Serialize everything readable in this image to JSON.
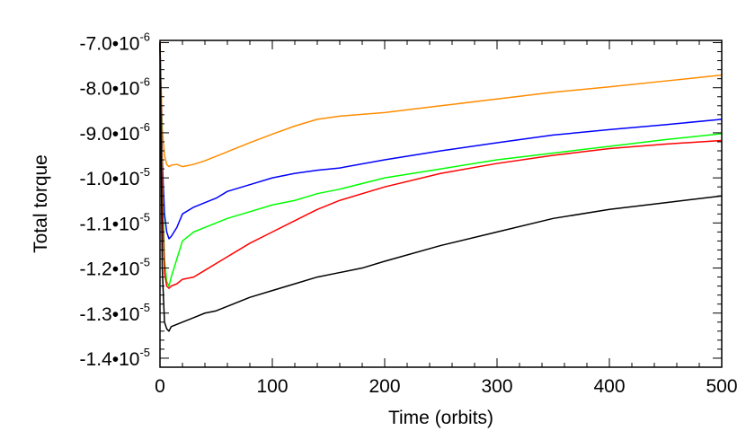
{
  "chart_data": {
    "type": "line",
    "title": "",
    "xlabel": "Time (orbits)",
    "ylabel": "Total torque",
    "xlim": [
      0,
      500
    ],
    "ylim": [
      -1.42e-05,
      -6.95e-06
    ],
    "grid": false,
    "legend": "none",
    "x_ticks": [
      {
        "value": 0,
        "label": "0"
      },
      {
        "value": 100,
        "label": "100"
      },
      {
        "value": 200,
        "label": "200"
      },
      {
        "value": 300,
        "label": "300"
      },
      {
        "value": 400,
        "label": "400"
      },
      {
        "value": 500,
        "label": "500"
      }
    ],
    "y_ticks": [
      {
        "value": -7e-06,
        "mantissa": "-7.0•10",
        "exponent": "-6"
      },
      {
        "value": -8e-06,
        "mantissa": "-8.0•10",
        "exponent": "-6"
      },
      {
        "value": -9e-06,
        "mantissa": "-9.0•10",
        "exponent": "-6"
      },
      {
        "value": -1e-05,
        "mantissa": "-1.0•10",
        "exponent": "-5"
      },
      {
        "value": -1.1e-05,
        "mantissa": "-1.1•10",
        "exponent": "-5"
      },
      {
        "value": -1.2e-05,
        "mantissa": "-1.2•10",
        "exponent": "-5"
      },
      {
        "value": -1.3e-05,
        "mantissa": "-1.3•10",
        "exponent": "-5"
      },
      {
        "value": -1.4e-05,
        "mantissa": "-1.4•10",
        "exponent": "-5"
      }
    ],
    "series": [
      {
        "color": "#ff8c00",
        "x": [
          0,
          2,
          4,
          6,
          8,
          10,
          15,
          20,
          30,
          40,
          50,
          60,
          80,
          100,
          120,
          140,
          160,
          200,
          250,
          300,
          350,
          400,
          450,
          500
        ],
        "y": [
          -7e-06,
          -8.9e-06,
          -9.5e-06,
          -9.7e-06,
          -9.75e-06,
          -9.72e-06,
          -9.7e-06,
          -9.75e-06,
          -9.7e-06,
          -9.62e-06,
          -9.52e-06,
          -9.42e-06,
          -9.22e-06,
          -9.03e-06,
          -8.85e-06,
          -8.7e-06,
          -8.63e-06,
          -8.55e-06,
          -8.4e-06,
          -8.25e-06,
          -8.1e-06,
          -7.98e-06,
          -7.85e-06,
          -7.72e-06
        ]
      },
      {
        "color": "#0000ff",
        "x": [
          0,
          2,
          4,
          6,
          8,
          10,
          15,
          20,
          30,
          40,
          50,
          60,
          80,
          100,
          120,
          140,
          160,
          200,
          250,
          300,
          350,
          400,
          450,
          500
        ],
        "y": [
          -7e-06,
          -9.6e-06,
          -1.08e-05,
          -1.12e-05,
          -1.135e-05,
          -1.13e-05,
          -1.11e-05,
          -1.08e-05,
          -1.065e-05,
          -1.055e-05,
          -1.045e-05,
          -1.03e-05,
          -1.015e-05,
          -1e-05,
          -9.9e-06,
          -9.83e-06,
          -9.78e-06,
          -9.6e-06,
          -9.4e-06,
          -9.22e-06,
          -9.05e-06,
          -8.93e-06,
          -8.82e-06,
          -8.7e-06
        ]
      },
      {
        "color": "#00ff00",
        "x": [
          0,
          2,
          4,
          6,
          8,
          10,
          15,
          20,
          30,
          40,
          50,
          60,
          80,
          100,
          120,
          140,
          160,
          200,
          250,
          300,
          350,
          400,
          450,
          500
        ],
        "y": [
          -7e-06,
          -1e-05,
          -1.18e-05,
          -1.23e-05,
          -1.24e-05,
          -1.22e-05,
          -1.18e-05,
          -1.14e-05,
          -1.12e-05,
          -1.11e-05,
          -1.1e-05,
          -1.09e-05,
          -1.075e-05,
          -1.06e-05,
          -1.05e-05,
          -1.035e-05,
          -1.025e-05,
          -1e-05,
          -9.8e-06,
          -9.6e-06,
          -9.45e-06,
          -9.3e-06,
          -9.15e-06,
          -9.02e-06
        ]
      },
      {
        "color": "#ff0000",
        "x": [
          0,
          2,
          4,
          6,
          8,
          10,
          15,
          20,
          30,
          40,
          50,
          60,
          80,
          100,
          120,
          140,
          160,
          200,
          250,
          300,
          350,
          400,
          450,
          500
        ],
        "y": [
          -7e-06,
          -1.05e-05,
          -1.21e-05,
          -1.24e-05,
          -1.245e-05,
          -1.24e-05,
          -1.235e-05,
          -1.225e-05,
          -1.22e-05,
          -1.205e-05,
          -1.19e-05,
          -1.175e-05,
          -1.145e-05,
          -1.12e-05,
          -1.095e-05,
          -1.07e-05,
          -1.05e-05,
          -1.02e-05,
          -9.9e-06,
          -9.68e-06,
          -9.5e-06,
          -9.35e-06,
          -9.25e-06,
          -9.17e-06
        ]
      },
      {
        "color": "#000000",
        "x": [
          0,
          2,
          4,
          6,
          8,
          10,
          15,
          20,
          30,
          40,
          50,
          60,
          80,
          100,
          120,
          140,
          160,
          180,
          200,
          250,
          300,
          350,
          400,
          450,
          500
        ],
        "y": [
          -7e-06,
          -1.2e-05,
          -1.32e-05,
          -1.335e-05,
          -1.34e-05,
          -1.33e-05,
          -1.325e-05,
          -1.32e-05,
          -1.31e-05,
          -1.3e-05,
          -1.295e-05,
          -1.285e-05,
          -1.265e-05,
          -1.25e-05,
          -1.235e-05,
          -1.22e-05,
          -1.21e-05,
          -1.2e-05,
          -1.185e-05,
          -1.15e-05,
          -1.12e-05,
          -1.09e-05,
          -1.07e-05,
          -1.055e-05,
          -1.04e-05
        ]
      }
    ]
  }
}
